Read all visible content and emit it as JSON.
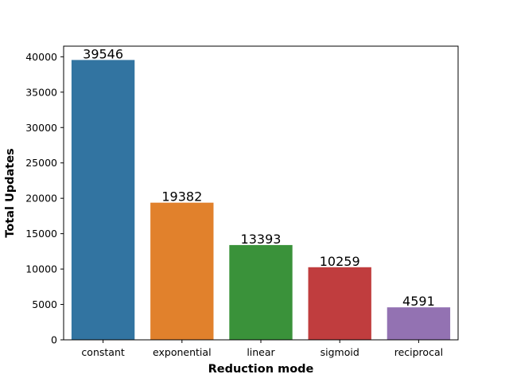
{
  "chart_data": {
    "type": "bar",
    "title": "",
    "xlabel": "Reduction mode",
    "ylabel": "Total Updates",
    "categories": [
      "constant",
      "exponential",
      "linear",
      "sigmoid",
      "reciprocal"
    ],
    "values": [
      39546,
      19382,
      13393,
      10259,
      4591
    ],
    "data_labels": [
      "39546",
      "19382",
      "13393",
      "10259",
      "4591"
    ],
    "colors": [
      "#3274a1",
      "#e1812c",
      "#3a923a",
      "#c03d3e",
      "#9372b2"
    ],
    "ylim": [
      0,
      41500
    ],
    "yticks": [
      0,
      5000,
      10000,
      15000,
      20000,
      25000,
      30000,
      35000,
      40000
    ],
    "ytick_labels": [
      "0",
      "5000",
      "10000",
      "15000",
      "20000",
      "25000",
      "30000",
      "35000",
      "40000"
    ],
    "grid": false,
    "legend": "none"
  }
}
